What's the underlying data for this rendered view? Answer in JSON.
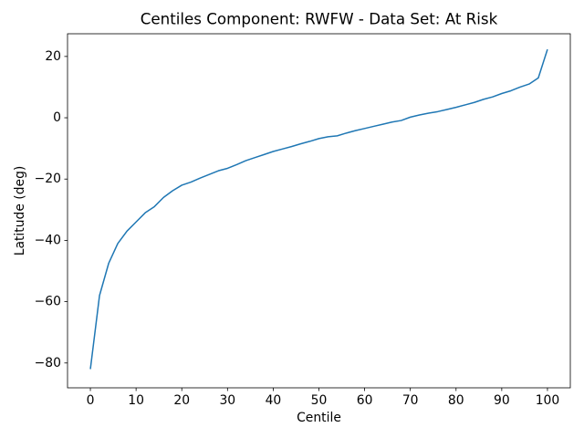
{
  "chart_data": {
    "type": "line",
    "title": "Centiles Component: RWFW - Data Set: At Risk",
    "x_label": "Centile",
    "y_label": "Latitude (deg)",
    "x": [
      0,
      2,
      4,
      6,
      8,
      10,
      12,
      14,
      16,
      18,
      20,
      22,
      24,
      26,
      28,
      30,
      32,
      34,
      36,
      38,
      40,
      42,
      44,
      46,
      48,
      50,
      52,
      54,
      56,
      58,
      60,
      62,
      64,
      66,
      68,
      70,
      72,
      74,
      76,
      78,
      80,
      82,
      84,
      86,
      88,
      90,
      92,
      94,
      96,
      98,
      100
    ],
    "series": [
      {
        "color": "#1f77b4",
        "values": [
          -82,
          -58,
          -47.5,
          -41,
          -37,
          -34,
          -31,
          -29,
          -26,
          -23.8,
          -22,
          -21,
          -19.7,
          -18.5,
          -17.3,
          -16.5,
          -15.3,
          -14,
          -13,
          -12,
          -11,
          -10.2,
          -9.4,
          -8.5,
          -7.7,
          -6.8,
          -6.2,
          -5.9,
          -5,
          -4.2,
          -3.5,
          -2.8,
          -2.1,
          -1.4,
          -0.9,
          0.2,
          0.9,
          1.5,
          2,
          2.7,
          3.4,
          4.2,
          5,
          6,
          6.8,
          7.9,
          8.8,
          10,
          11,
          13,
          22.3
        ]
      }
    ],
    "xlim": [
      -5,
      105
    ],
    "ylim": [
      -88.1,
      27.4
    ],
    "xticks": [
      0,
      10,
      20,
      30,
      40,
      50,
      60,
      70,
      80,
      90,
      100
    ],
    "yticks": [
      {
        "value": -80,
        "label": "−80"
      },
      {
        "value": -60,
        "label": "−60"
      },
      {
        "value": -40,
        "label": "−40"
      },
      {
        "value": -20,
        "label": "−20"
      },
      0,
      20
    ],
    "grid": false
  }
}
